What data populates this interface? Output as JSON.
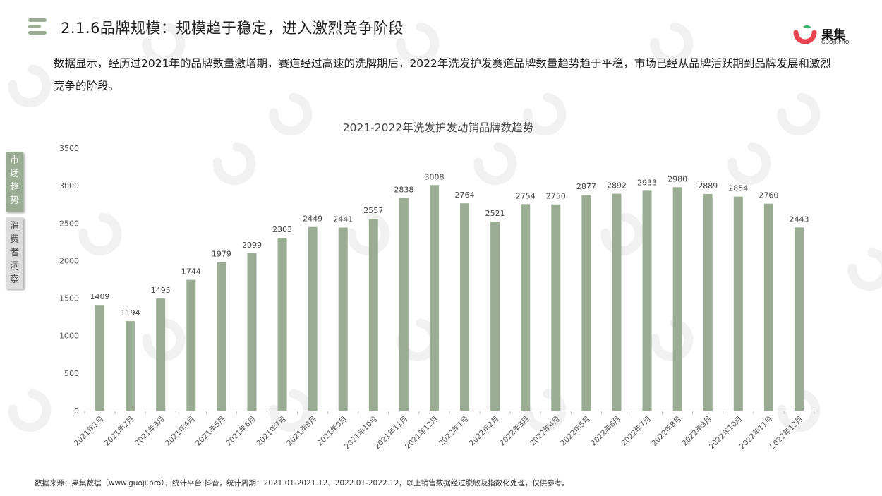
{
  "header": {
    "title": "2.1.6品牌规模：规模趋于稳定，进入激烈竞争阶段"
  },
  "brand": {
    "name": "果集",
    "sub": "GUOJI.PRO",
    "accent_color": "#e8434f",
    "green_color": "#3db26a"
  },
  "description": "数据显示，经历过2021年的品牌数量激增期，赛道经过高速的洗牌期后，2022年洗发护发赛道品牌数量趋势趋于平稳，市场已经从品牌活跃期到品牌发展和激烈竞争的阶段。",
  "side_tabs": [
    {
      "label": "市场趋势"
    },
    {
      "label": "消费者洞察"
    }
  ],
  "footer": {
    "source": "数据来源：果集数据（www.guoji.pro），统计平台:抖音，统计周期：2021.01-2021.12、2022.01-2022.12，以上销售数据经过脱敏及指数化处理，仅供参考。"
  },
  "colors": {
    "bar": "#9aad93",
    "axis": "#bfbfbf",
    "tick_text": "#555555",
    "title_text": "#444444"
  },
  "chart_data": {
    "type": "bar",
    "title": "2021-2022年洗发护发动销品牌数趋势",
    "xlabel": "",
    "ylabel": "",
    "ylim": [
      0,
      3500
    ],
    "yticks": [
      0,
      500,
      1000,
      1500,
      2000,
      2500,
      3000,
      3500
    ],
    "grid": false,
    "legend": "none",
    "categories": [
      "2021年1月",
      "2021年2月",
      "2021年3月",
      "2021年4月",
      "2021年5月",
      "2021年6月",
      "2021年7月",
      "2021年8月",
      "2021年9月",
      "2021年10月",
      "2021年11月",
      "2021年12月",
      "2022年1月",
      "2022年2月",
      "2022年3月",
      "2022年4月",
      "2022年5月",
      "2022年6月",
      "2022年7月",
      "2022年8月",
      "2022年9月",
      "2022年10月",
      "2022年11月",
      "2022年12月"
    ],
    "values": [
      1409,
      1194,
      1495,
      1744,
      1979,
      2099,
      2303,
      2449,
      2441,
      2557,
      2838,
      3008,
      2764,
      2521,
      2754,
      2750,
      2877,
      2892,
      2933,
      2980,
      2889,
      2854,
      2760,
      2443
    ]
  }
}
